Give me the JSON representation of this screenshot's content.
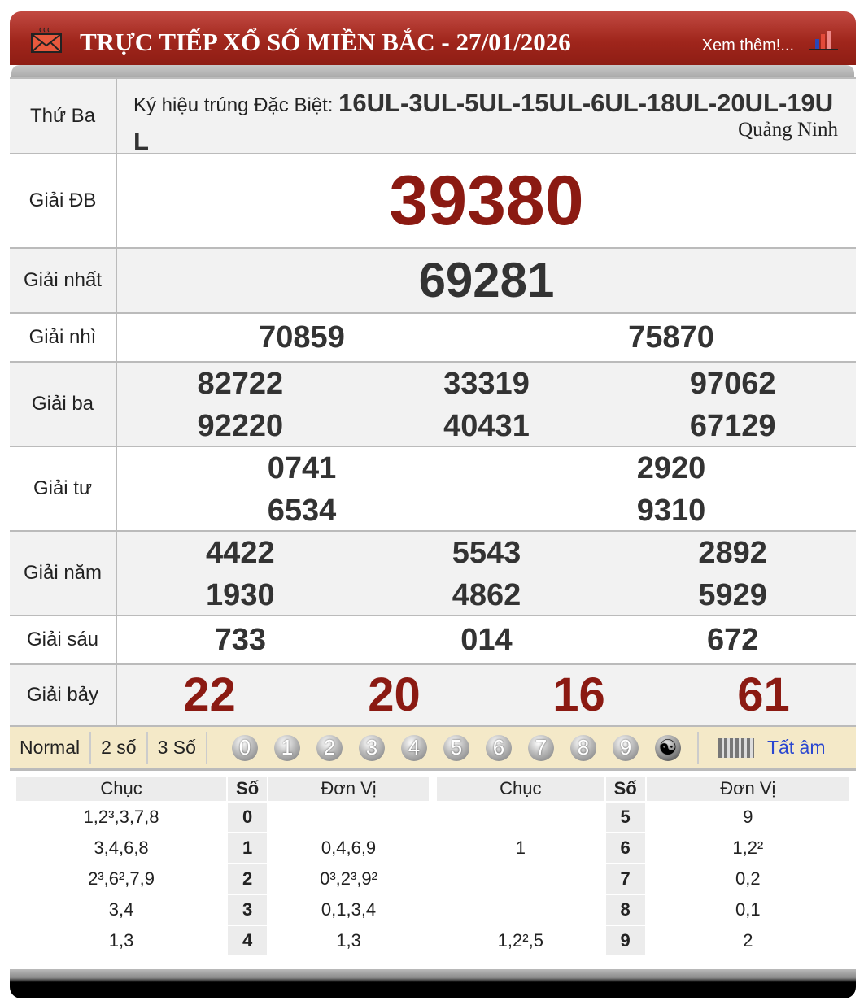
{
  "header": {
    "title": "TRỰC TIẾP XỔ SỐ MIỀN BẮC - 27/01/2026",
    "more_link": "Xem thêm!...",
    "icons": [
      "mail-icon",
      "bar-chart-icon"
    ],
    "color": "#a0261c"
  },
  "info": {
    "day": "Thứ Ba",
    "symbol_label": "Ký hiệu trúng Đặc Biệt:",
    "symbol_value": "16UL-3UL-5UL-15UL-6UL-18UL-20UL-19UL",
    "province": "Quảng Ninh"
  },
  "prizes": {
    "db": {
      "label": "Giải ĐB",
      "numbers": [
        "39380"
      ]
    },
    "nhat": {
      "label": "Giải nhất",
      "numbers": [
        "69281"
      ]
    },
    "nhi": {
      "label": "Giải nhì",
      "numbers": [
        "70859",
        "75870"
      ]
    },
    "ba": {
      "label": "Giải ba",
      "numbers": [
        "82722",
        "33319",
        "97062",
        "92220",
        "40431",
        "67129"
      ]
    },
    "tu": {
      "label": "Giải tư",
      "numbers": [
        "0741",
        "2920",
        "6534",
        "9310"
      ]
    },
    "nam": {
      "label": "Giải năm",
      "numbers": [
        "4422",
        "5543",
        "2892",
        "1930",
        "4862",
        "5929"
      ]
    },
    "sau": {
      "label": "Giải sáu",
      "numbers": [
        "733",
        "014",
        "672"
      ]
    },
    "bay": {
      "label": "Giải bảy",
      "numbers": [
        "22",
        "20",
        "16",
        "61"
      ]
    }
  },
  "toolbar": {
    "modes": [
      "Normal",
      "2 số",
      "3 Số"
    ],
    "digits": [
      "0",
      "1",
      "2",
      "3",
      "4",
      "5",
      "6",
      "7",
      "8",
      "9"
    ],
    "yin_yang": "yin-yang-icon",
    "all_label": "Tất âm"
  },
  "loto": {
    "headers": [
      "Chục",
      "Số",
      "Đơn Vị"
    ],
    "left": [
      [
        "1,2³,3,7,8",
        "0",
        ""
      ],
      [
        "3,4,6,8",
        "1",
        "0,4,6,9"
      ],
      [
        "2³,6²,7,9",
        "2",
        "0³,2³,9²"
      ],
      [
        "3,4",
        "3",
        "0,1,3,4"
      ],
      [
        "1,3",
        "4",
        "1,3"
      ]
    ],
    "right": [
      [
        "",
        "5",
        "9"
      ],
      [
        "1",
        "6",
        "1,2²"
      ],
      [
        "",
        "7",
        "0,2"
      ],
      [
        "",
        "8",
        "0,1"
      ],
      [
        "1,2²,5",
        "9",
        "2"
      ]
    ]
  }
}
